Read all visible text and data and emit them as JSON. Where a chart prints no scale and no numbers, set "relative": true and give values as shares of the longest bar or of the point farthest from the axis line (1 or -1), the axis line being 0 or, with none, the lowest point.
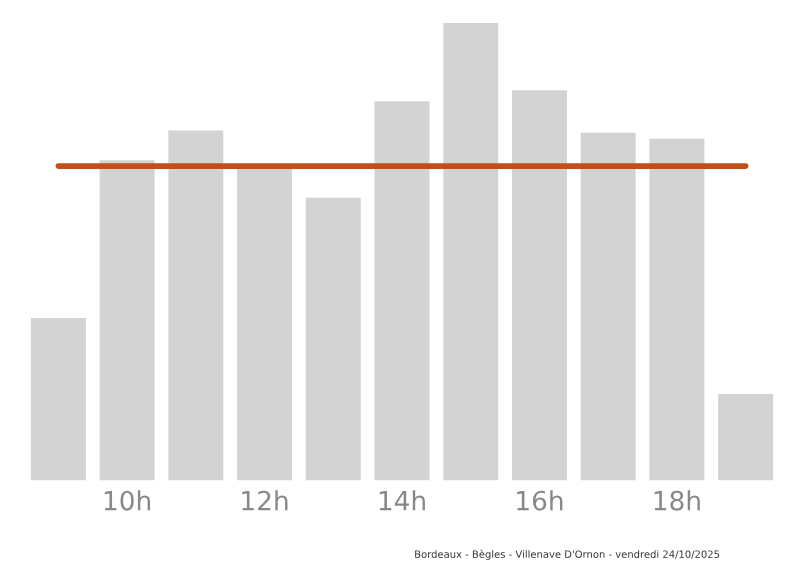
{
  "chart_data": {
    "type": "bar",
    "relative": true,
    "categories": [
      null,
      "10h",
      null,
      "12h",
      null,
      "14h",
      null,
      "16h",
      null,
      "18h",
      null
    ],
    "series": [
      {
        "color": "#d3d3d3",
        "values": [
          0.355,
          0.7,
          0.765,
          0.682,
          0.618,
          0.829,
          1,
          0.853,
          0.76,
          0.747,
          0.189
        ]
      }
    ],
    "ref_lines": [
      {
        "axis": "y",
        "value": 0.687,
        "color": "#c0501a",
        "line_style": "solid"
      }
    ],
    "annotations": [
      "Bordeaux - Bègles - Villenave D'Ornon - vendredi 24/10/2025"
    ],
    "grid": false,
    "legend": false
  }
}
